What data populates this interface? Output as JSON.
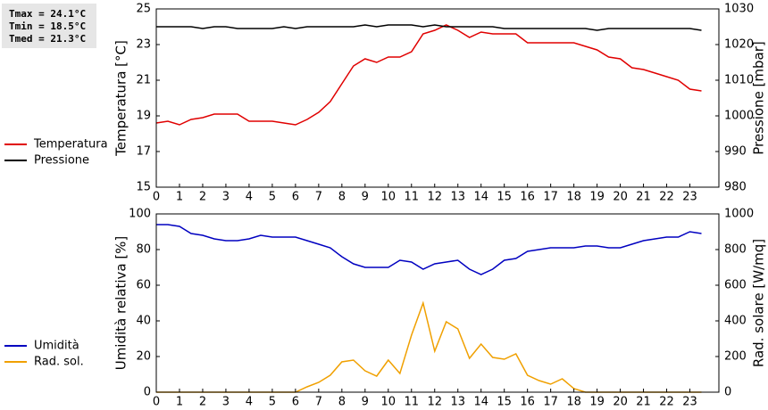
{
  "chart_data": [
    {
      "type": "line",
      "annotations": [
        "Tmax = 24.1°C",
        "Tmin = 18.5°C",
        "Tmed = 21.3°C"
      ],
      "ylabel": "Temperatura [°C]",
      "y2label": "Pressione [mbar]",
      "x": [
        0,
        0.5,
        1,
        1.5,
        2,
        2.5,
        3,
        3.5,
        4,
        4.5,
        5,
        5.5,
        6,
        6.5,
        7,
        7.5,
        8,
        8.5,
        9,
        9.5,
        10,
        10.5,
        11,
        11.5,
        12,
        12.5,
        13,
        13.5,
        14,
        14.5,
        15,
        15.5,
        16,
        16.5,
        17,
        17.5,
        18,
        18.5,
        19,
        19.5,
        20,
        20.5,
        21,
        21.5,
        22,
        22.5,
        23,
        23.5
      ],
      "xlim": [
        0,
        24.25
      ],
      "xticks": [
        0,
        1,
        2,
        3,
        4,
        5,
        6,
        7,
        8,
        9,
        10,
        11,
        12,
        13,
        14,
        15,
        16,
        17,
        18,
        19,
        20,
        21,
        22,
        23
      ],
      "ylim": [
        15,
        25
      ],
      "yticks": [
        15,
        17,
        19,
        21,
        23,
        25
      ],
      "y2lim": [
        980,
        1030
      ],
      "y2ticks": [
        980,
        990,
        1000,
        1010,
        1020,
        1030
      ],
      "series": [
        {
          "name": "Temperatura",
          "color": "#e00000",
          "values": [
            18.6,
            18.7,
            18.5,
            18.8,
            18.9,
            19.1,
            19.1,
            19.1,
            18.7,
            18.7,
            18.7,
            18.6,
            18.5,
            18.8,
            19.2,
            19.8,
            20.8,
            21.8,
            22.2,
            22.0,
            22.3,
            22.3,
            22.6,
            23.6,
            23.8,
            24.1,
            23.8,
            23.4,
            23.7,
            23.6,
            23.6,
            23.6,
            23.1,
            23.1,
            23.1,
            23.1,
            23.1,
            22.9,
            22.7,
            22.3,
            22.2,
            21.7,
            21.6,
            21.4,
            21.2,
            21.0,
            20.5,
            20.4
          ]
        },
        {
          "name": "Pressione",
          "color": "#000000",
          "axis": "y2",
          "values": [
            1025,
            1025,
            1025,
            1025,
            1024.5,
            1025,
            1025,
            1024.5,
            1024.5,
            1024.5,
            1024.5,
            1025,
            1024.5,
            1025,
            1025,
            1025,
            1025,
            1025,
            1025.5,
            1025,
            1025.5,
            1025.5,
            1025.5,
            1025,
            1025.5,
            1025,
            1025,
            1025,
            1025,
            1025,
            1024.5,
            1024.5,
            1024.5,
            1024.5,
            1024.5,
            1024.5,
            1024.5,
            1024.5,
            1024,
            1024.5,
            1024.5,
            1024.5,
            1024.5,
            1024.5,
            1024.5,
            1024.5,
            1024.5,
            1024
          ]
        }
      ]
    },
    {
      "type": "line",
      "ylabel": "Umidità relativa [%]",
      "y2label": "Rad. solare [W/mq]",
      "x": [
        0,
        0.5,
        1,
        1.5,
        2,
        2.5,
        3,
        3.5,
        4,
        4.5,
        5,
        5.5,
        6,
        6.5,
        7,
        7.5,
        8,
        8.5,
        9,
        9.5,
        10,
        10.5,
        11,
        11.5,
        12,
        12.5,
        13,
        13.5,
        14,
        14.5,
        15,
        15.5,
        16,
        16.5,
        17,
        17.5,
        18,
        18.5,
        19,
        19.5,
        20,
        20.5,
        21,
        21.5,
        22,
        22.5,
        23,
        23.5
      ],
      "xlim": [
        0,
        24.25
      ],
      "xticks": [
        0,
        1,
        2,
        3,
        4,
        5,
        6,
        7,
        8,
        9,
        10,
        11,
        12,
        13,
        14,
        15,
        16,
        17,
        18,
        19,
        20,
        21,
        22,
        23
      ],
      "ylim": [
        0,
        100
      ],
      "yticks": [
        0,
        20,
        40,
        60,
        80,
        100
      ],
      "y2lim": [
        0,
        1000
      ],
      "y2ticks": [
        0,
        200,
        400,
        600,
        800,
        1000
      ],
      "series": [
        {
          "name": "Umidità",
          "color": "#0000c0",
          "values": [
            94,
            94,
            93,
            89,
            88,
            86,
            85,
            85,
            86,
            88,
            87,
            87,
            87,
            85,
            83,
            81,
            76,
            72,
            70,
            70,
            70,
            74,
            73,
            69,
            72,
            73,
            74,
            69,
            66,
            69,
            74,
            75,
            79,
            80,
            81,
            81,
            81,
            82,
            82,
            81,
            81,
            83,
            85,
            86,
            87,
            87,
            90,
            89
          ]
        },
        {
          "name": "Rad. sol.",
          "color": "#f0a000",
          "axis": "y2",
          "values": [
            0,
            0,
            0,
            0,
            0,
            0,
            0,
            0,
            0,
            0,
            0,
            0,
            0,
            30,
            55,
            95,
            170,
            180,
            120,
            90,
            180,
            105,
            320,
            500,
            230,
            395,
            355,
            190,
            270,
            195,
            185,
            215,
            95,
            65,
            45,
            75,
            20,
            0,
            0,
            0,
            0,
            0,
            0,
            0,
            0,
            0,
            0,
            0
          ]
        }
      ]
    }
  ]
}
